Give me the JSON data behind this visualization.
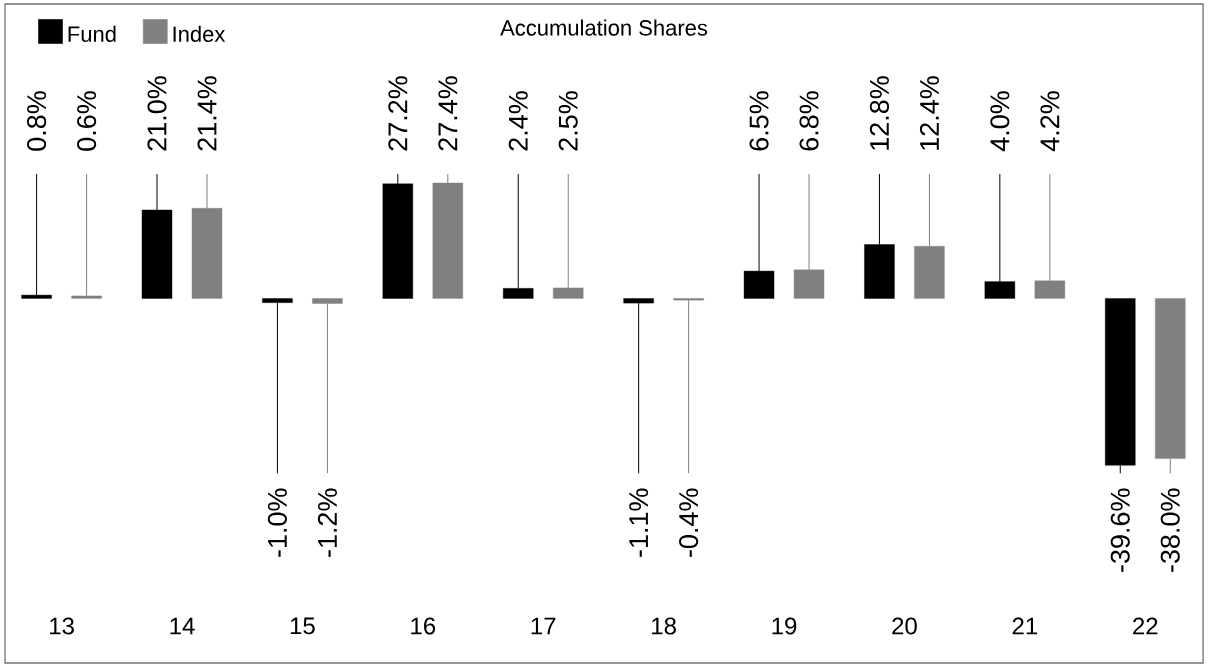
{
  "chart_data": {
    "type": "bar",
    "title": "Accumulation Shares",
    "categories": [
      "13",
      "14",
      "15",
      "16",
      "17",
      "18",
      "19",
      "20",
      "21",
      "22"
    ],
    "series": [
      {
        "name": "Fund",
        "color": "#000000",
        "values": [
          0.8,
          21.0,
          -1.0,
          27.2,
          2.4,
          -1.1,
          6.5,
          12.8,
          4.0,
          -39.6
        ],
        "value_labels": [
          "0.8%",
          "21.0%",
          "-1.0%",
          "27.2%",
          "2.4%",
          "-1.1%",
          "6.5%",
          "12.8%",
          "4.0%",
          "-39.6%"
        ]
      },
      {
        "name": "Index",
        "color": "#808080",
        "values": [
          0.6,
          21.4,
          -1.2,
          27.4,
          2.5,
          -0.4,
          6.8,
          12.4,
          4.2,
          -38.0
        ],
        "value_labels": [
          "0.6%",
          "21.4%",
          "-1.2%",
          "27.4%",
          "2.5%",
          "-0.4%",
          "6.8%",
          "12.4%",
          "4.2%",
          "-38.0%"
        ]
      }
    ],
    "legend": "top left",
    "tick_labels": "x"
  }
}
